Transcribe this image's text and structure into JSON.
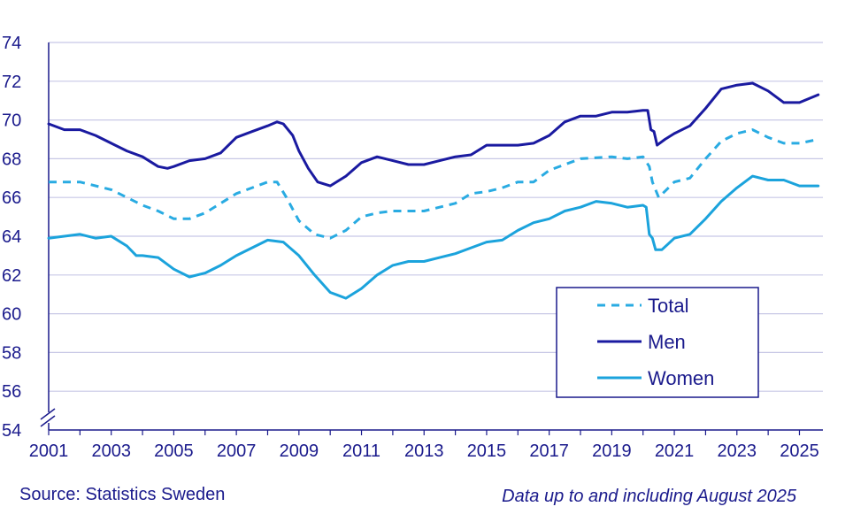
{
  "footer": {
    "source": "Source: Statistics Sweden",
    "note": "Data up to and including August 2025"
  },
  "colors": {
    "total": "#29abe2",
    "men": "#1a1aa0",
    "women": "#1ba3dc",
    "grid": "#c8c8e6",
    "text": "#1a1a8c"
  },
  "chart_data": {
    "type": "line",
    "title": "",
    "xlabel": "",
    "ylabel": "",
    "xlim": [
      2001,
      2025.75
    ],
    "ylim": [
      54,
      74
    ],
    "y_ticks": [
      54,
      56,
      58,
      60,
      62,
      64,
      66,
      68,
      70,
      72,
      74
    ],
    "x_ticks": [
      2001,
      2003,
      2005,
      2007,
      2009,
      2011,
      2013,
      2015,
      2017,
      2019,
      2021,
      2023,
      2025
    ],
    "y_axis_break": true,
    "grid": "horizontal",
    "legend_position": "bottom-right",
    "series": [
      {
        "name": "Total",
        "style": "dashed",
        "color": "#29abe2",
        "points": [
          [
            2001,
            66.8
          ],
          [
            2002,
            66.8
          ],
          [
            2003,
            66.4
          ],
          [
            2004,
            65.6
          ],
          [
            2004.5,
            65.3
          ],
          [
            2005,
            64.9
          ],
          [
            2005.5,
            64.9
          ],
          [
            2006,
            65.2
          ],
          [
            2007,
            66.2
          ],
          [
            2008,
            66.8
          ],
          [
            2008.3,
            66.8
          ],
          [
            2008.6,
            66.0
          ],
          [
            2009,
            64.8
          ],
          [
            2009.5,
            64.1
          ],
          [
            2010,
            63.9
          ],
          [
            2010.5,
            64.3
          ],
          [
            2011,
            65.0
          ],
          [
            2011.5,
            65.2
          ],
          [
            2012,
            65.3
          ],
          [
            2013,
            65.3
          ],
          [
            2014,
            65.7
          ],
          [
            2014.5,
            66.2
          ],
          [
            2015,
            66.3
          ],
          [
            2015.5,
            66.5
          ],
          [
            2016,
            66.8
          ],
          [
            2016.5,
            66.8
          ],
          [
            2017,
            67.4
          ],
          [
            2017.5,
            67.7
          ],
          [
            2018,
            68.0
          ],
          [
            2019,
            68.1
          ],
          [
            2019.5,
            68.0
          ],
          [
            2020,
            68.1
          ],
          [
            2020.2,
            67.6
          ],
          [
            2020.3,
            66.8
          ],
          [
            2020.5,
            66.0
          ],
          [
            2021,
            66.8
          ],
          [
            2021.5,
            67.0
          ],
          [
            2022,
            68.0
          ],
          [
            2022.5,
            68.9
          ],
          [
            2023,
            69.3
          ],
          [
            2023.5,
            69.5
          ],
          [
            2024,
            69.1
          ],
          [
            2024.5,
            68.8
          ],
          [
            2025,
            68.8
          ],
          [
            2025.6,
            69.0
          ]
        ]
      },
      {
        "name": "Men",
        "style": "solid",
        "color": "#1a1aa0",
        "points": [
          [
            2001,
            69.8
          ],
          [
            2001.5,
            69.5
          ],
          [
            2002,
            69.5
          ],
          [
            2002.5,
            69.2
          ],
          [
            2003,
            68.8
          ],
          [
            2003.5,
            68.4
          ],
          [
            2004,
            68.1
          ],
          [
            2004.5,
            67.6
          ],
          [
            2004.8,
            67.5
          ],
          [
            2005,
            67.6
          ],
          [
            2005.5,
            67.9
          ],
          [
            2006,
            68.0
          ],
          [
            2006.5,
            68.3
          ],
          [
            2007,
            69.1
          ],
          [
            2007.5,
            69.4
          ],
          [
            2008,
            69.7
          ],
          [
            2008.3,
            69.9
          ],
          [
            2008.5,
            69.8
          ],
          [
            2008.8,
            69.2
          ],
          [
            2009,
            68.4
          ],
          [
            2009.3,
            67.5
          ],
          [
            2009.6,
            66.8
          ],
          [
            2010,
            66.6
          ],
          [
            2010.5,
            67.1
          ],
          [
            2011,
            67.8
          ],
          [
            2011.5,
            68.1
          ],
          [
            2012,
            67.9
          ],
          [
            2012.5,
            67.7
          ],
          [
            2013,
            67.7
          ],
          [
            2013.5,
            67.9
          ],
          [
            2014,
            68.1
          ],
          [
            2014.5,
            68.2
          ],
          [
            2015,
            68.7
          ],
          [
            2015.5,
            68.7
          ],
          [
            2016,
            68.7
          ],
          [
            2016.5,
            68.8
          ],
          [
            2017,
            69.2
          ],
          [
            2017.5,
            69.9
          ],
          [
            2018,
            70.2
          ],
          [
            2018.5,
            70.2
          ],
          [
            2019,
            70.4
          ],
          [
            2019.5,
            70.4
          ],
          [
            2020,
            70.5
          ],
          [
            2020.15,
            70.5
          ],
          [
            2020.25,
            69.5
          ],
          [
            2020.35,
            69.4
          ],
          [
            2020.45,
            68.7
          ],
          [
            2020.7,
            69.0
          ],
          [
            2021,
            69.3
          ],
          [
            2021.5,
            69.7
          ],
          [
            2022,
            70.6
          ],
          [
            2022.5,
            71.6
          ],
          [
            2023,
            71.8
          ],
          [
            2023.5,
            71.9
          ],
          [
            2024,
            71.5
          ],
          [
            2024.5,
            70.9
          ],
          [
            2025,
            70.9
          ],
          [
            2025.6,
            71.3
          ]
        ]
      },
      {
        "name": "Women",
        "style": "solid",
        "color": "#1ba3dc",
        "points": [
          [
            2001,
            63.9
          ],
          [
            2001.5,
            64.0
          ],
          [
            2002,
            64.1
          ],
          [
            2002.5,
            63.9
          ],
          [
            2003,
            64.0
          ],
          [
            2003.5,
            63.5
          ],
          [
            2003.8,
            63.0
          ],
          [
            2004,
            63.0
          ],
          [
            2004.5,
            62.9
          ],
          [
            2005,
            62.3
          ],
          [
            2005.5,
            61.9
          ],
          [
            2006,
            62.1
          ],
          [
            2006.5,
            62.5
          ],
          [
            2007,
            63.0
          ],
          [
            2007.5,
            63.4
          ],
          [
            2008,
            63.8
          ],
          [
            2008.5,
            63.7
          ],
          [
            2009,
            63.0
          ],
          [
            2009.5,
            62.0
          ],
          [
            2010,
            61.1
          ],
          [
            2010.5,
            60.8
          ],
          [
            2011,
            61.3
          ],
          [
            2011.5,
            62.0
          ],
          [
            2012,
            62.5
          ],
          [
            2012.5,
            62.7
          ],
          [
            2013,
            62.7
          ],
          [
            2013.5,
            62.9
          ],
          [
            2014,
            63.1
          ],
          [
            2014.5,
            63.4
          ],
          [
            2015,
            63.7
          ],
          [
            2015.5,
            63.8
          ],
          [
            2016,
            64.3
          ],
          [
            2016.5,
            64.7
          ],
          [
            2017,
            64.9
          ],
          [
            2017.5,
            65.3
          ],
          [
            2018,
            65.5
          ],
          [
            2018.5,
            65.8
          ],
          [
            2019,
            65.7
          ],
          [
            2019.5,
            65.5
          ],
          [
            2020,
            65.6
          ],
          [
            2020.1,
            65.5
          ],
          [
            2020.2,
            64.1
          ],
          [
            2020.3,
            63.9
          ],
          [
            2020.4,
            63.3
          ],
          [
            2020.6,
            63.3
          ],
          [
            2020.8,
            63.6
          ],
          [
            2021,
            63.9
          ],
          [
            2021.5,
            64.1
          ],
          [
            2022,
            64.9
          ],
          [
            2022.5,
            65.8
          ],
          [
            2023,
            66.5
          ],
          [
            2023.5,
            67.1
          ],
          [
            2024,
            66.9
          ],
          [
            2024.5,
            66.9
          ],
          [
            2025,
            66.6
          ],
          [
            2025.6,
            66.6
          ]
        ]
      }
    ]
  }
}
